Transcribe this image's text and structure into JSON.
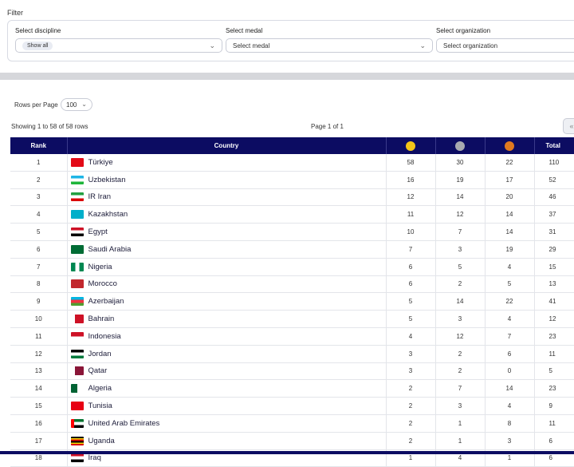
{
  "filter": {
    "title": "Filter",
    "discipline": {
      "label": "Select discipline",
      "value": "Show all"
    },
    "medal": {
      "label": "Select medal",
      "placeholder": "Select medal"
    },
    "organization": {
      "label": "Select organization",
      "placeholder": "Select organization"
    }
  },
  "rows_per_page": {
    "label": "Rows per Page",
    "value": "100"
  },
  "summary": {
    "showing": "Showing 1 to 58 of 58 rows",
    "page": "Page 1 of 1",
    "pager_icon": "«"
  },
  "table": {
    "headers": {
      "rank": "Rank",
      "country": "Country",
      "total": "Total"
    },
    "medal_colors": {
      "gold": "#f5c518",
      "silver": "#a8aab0",
      "bronze": "#e07a1f"
    },
    "header_bg": "#0c0c62",
    "rows": [
      {
        "rank": "1",
        "country": "Türkiye",
        "gold": "58",
        "silver": "30",
        "bronze": "22",
        "total": "110",
        "flag": "tr"
      },
      {
        "rank": "2",
        "country": "Uzbekistan",
        "gold": "16",
        "silver": "19",
        "bronze": "17",
        "total": "52",
        "flag": "uz"
      },
      {
        "rank": "3",
        "country": "IR Iran",
        "gold": "12",
        "silver": "14",
        "bronze": "20",
        "total": "46",
        "flag": "ir"
      },
      {
        "rank": "4",
        "country": "Kazakhstan",
        "gold": "11",
        "silver": "12",
        "bronze": "14",
        "total": "37",
        "flag": "kz"
      },
      {
        "rank": "5",
        "country": "Egypt",
        "gold": "10",
        "silver": "7",
        "bronze": "14",
        "total": "31",
        "flag": "eg"
      },
      {
        "rank": "6",
        "country": "Saudi Arabia",
        "gold": "7",
        "silver": "3",
        "bronze": "19",
        "total": "29",
        "flag": "sa"
      },
      {
        "rank": "7",
        "country": "Nigeria",
        "gold": "6",
        "silver": "5",
        "bronze": "4",
        "total": "15",
        "flag": "ng"
      },
      {
        "rank": "8",
        "country": "Morocco",
        "gold": "6",
        "silver": "2",
        "bronze": "5",
        "total": "13",
        "flag": "ma"
      },
      {
        "rank": "9",
        "country": "Azerbaijan",
        "gold": "5",
        "silver": "14",
        "bronze": "22",
        "total": "41",
        "flag": "az"
      },
      {
        "rank": "10",
        "country": "Bahrain",
        "gold": "5",
        "silver": "3",
        "bronze": "4",
        "total": "12",
        "flag": "bh"
      },
      {
        "rank": "11",
        "country": "Indonesia",
        "gold": "4",
        "silver": "12",
        "bronze": "7",
        "total": "23",
        "flag": "id"
      },
      {
        "rank": "12",
        "country": "Jordan",
        "gold": "3",
        "silver": "2",
        "bronze": "6",
        "total": "11",
        "flag": "jo"
      },
      {
        "rank": "13",
        "country": "Qatar",
        "gold": "3",
        "silver": "2",
        "bronze": "0",
        "total": "5",
        "flag": "qa"
      },
      {
        "rank": "14",
        "country": "Algeria",
        "gold": "2",
        "silver": "7",
        "bronze": "14",
        "total": "23",
        "flag": "dz"
      },
      {
        "rank": "15",
        "country": "Tunisia",
        "gold": "2",
        "silver": "3",
        "bronze": "4",
        "total": "9",
        "flag": "tn"
      },
      {
        "rank": "16",
        "country": "United Arab Emirates",
        "gold": "2",
        "silver": "1",
        "bronze": "8",
        "total": "11",
        "flag": "ae"
      },
      {
        "rank": "17",
        "country": "Uganda",
        "gold": "2",
        "silver": "1",
        "bronze": "3",
        "total": "6",
        "flag": "ug"
      },
      {
        "rank": "18",
        "country": "Iraq",
        "gold": "1",
        "silver": "4",
        "bronze": "1",
        "total": "6",
        "flag": "iq"
      }
    ]
  }
}
